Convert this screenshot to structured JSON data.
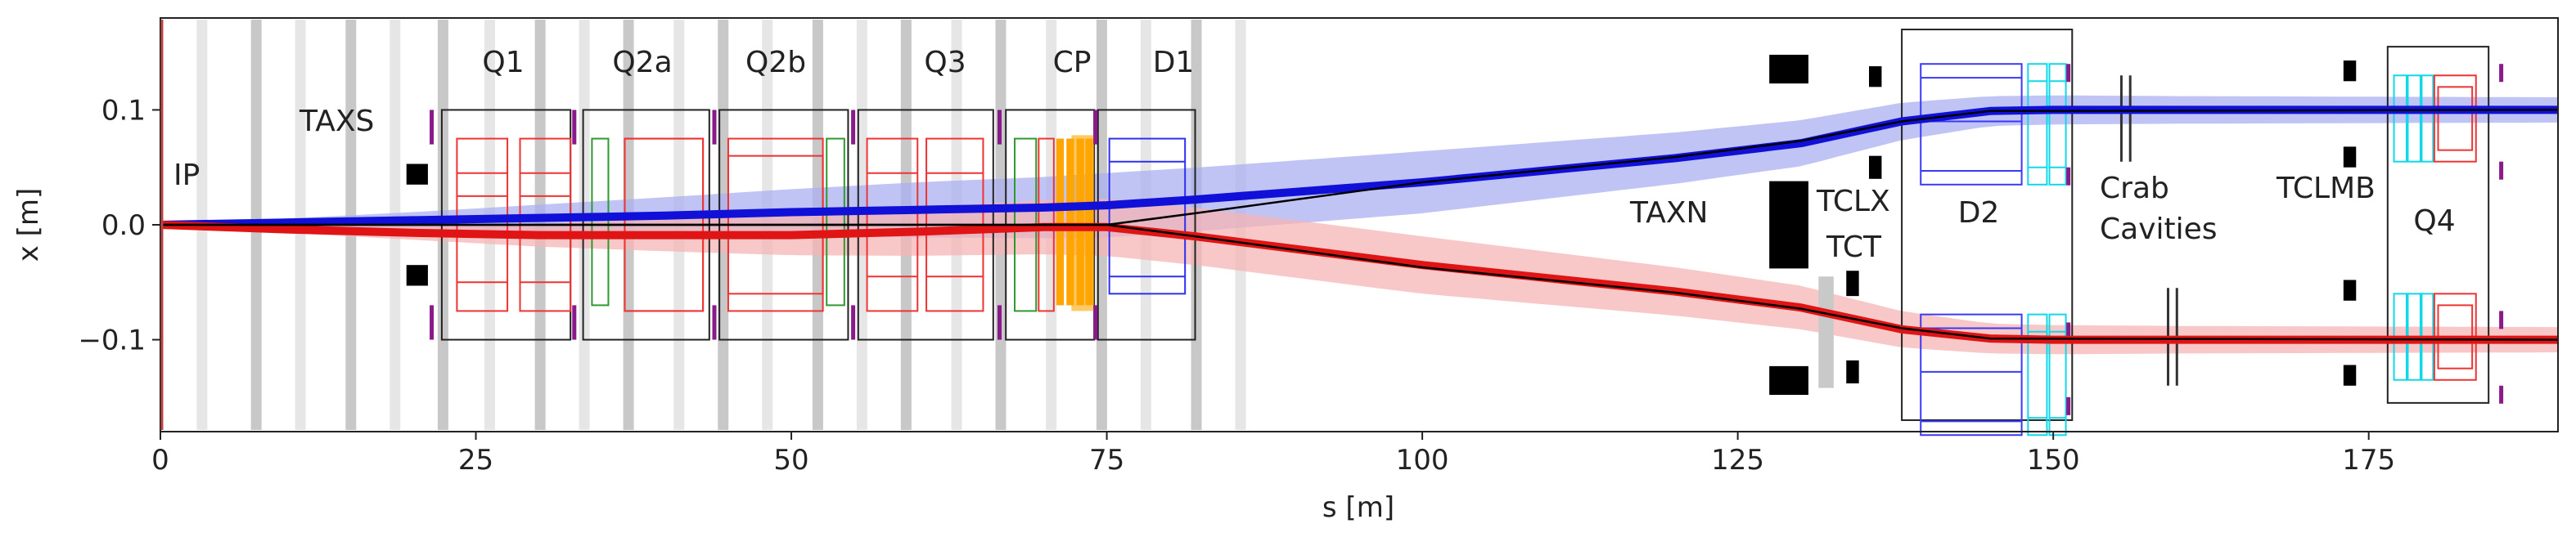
{
  "title": "",
  "axes": {
    "xlabel": "s [m]",
    "ylabel": "x [m]",
    "xlim": [
      0,
      190
    ],
    "ylim": [
      -0.18,
      0.18
    ],
    "xticks": [
      0,
      25,
      50,
      75,
      100,
      125,
      150,
      175
    ],
    "yticks": [
      0.1,
      0.0,
      -0.1
    ],
    "xtick_labels": [
      "0",
      "25",
      "50",
      "75",
      "100",
      "125",
      "150",
      "175"
    ],
    "ytick_labels": [
      "0.1",
      "0.0",
      "−0.1"
    ]
  },
  "labels": {
    "ip": "IP",
    "taxs": "TAXS",
    "q1": "Q1",
    "q2a": "Q2a",
    "q2b": "Q2b",
    "q3": "Q3",
    "cp": "CP",
    "d1": "D1",
    "taxn": "TAXN",
    "tclx": "TCLX",
    "tct": "TCT",
    "d2": "D2",
    "crab_line1": "Crab",
    "crab_line2": "Cavities",
    "tclmb": "TCLMB",
    "q4": "Q4"
  },
  "colors": {
    "beam1": "#1010d8",
    "beam1_envelope": "#aab0f2",
    "beam2": "#e01414",
    "beam2_envelope": "#f6b4b4",
    "reference": "#000000",
    "q_magnet": "#ee3333",
    "corrector": "#2e9a2e",
    "cp_mask": "#ffa500",
    "d1_coil": "#2f2ff0",
    "d2_coil": "#3a3af5",
    "cyan_coil": "#11d8e8",
    "collimator": "#000000",
    "bpm": "#8a1a8a",
    "stripe_dark": "#c8c8c8",
    "stripe_light": "#e6e6e6"
  },
  "chart_data": {
    "type": "line",
    "x_unit": "m",
    "y_unit": "m",
    "series": [
      {
        "name": "Beam 1 (blue) orbit",
        "s": [
          0,
          10,
          20,
          30,
          40,
          50,
          60,
          70,
          75,
          82,
          100,
          120,
          130,
          138,
          145,
          150,
          160,
          170,
          180,
          190
        ],
        "x": [
          0.0,
          0.002,
          0.004,
          0.006,
          0.008,
          0.011,
          0.013,
          0.015,
          0.017,
          0.022,
          0.037,
          0.058,
          0.071,
          0.09,
          0.099,
          0.1,
          0.1,
          0.1,
          0.1,
          0.1
        ]
      },
      {
        "name": "Beam 2 (red) orbit",
        "s": [
          0,
          10,
          20,
          30,
          40,
          50,
          60,
          70,
          75,
          82,
          100,
          120,
          130,
          138,
          145,
          150,
          160,
          170,
          180,
          190
        ],
        "x": [
          0.0,
          -0.004,
          -0.007,
          -0.009,
          -0.009,
          -0.009,
          -0.006,
          -0.002,
          -0.002,
          -0.01,
          -0.035,
          -0.058,
          -0.072,
          -0.091,
          -0.099,
          -0.1,
          -0.1,
          -0.1,
          -0.1,
          -0.1
        ]
      },
      {
        "name": "Beam 1 envelope half-width",
        "s": [
          0,
          20,
          40,
          60,
          75,
          100,
          130,
          145,
          160,
          190
        ],
        "x": [
          0.0,
          0.007,
          0.016,
          0.024,
          0.028,
          0.027,
          0.02,
          0.013,
          0.012,
          0.011
        ]
      },
      {
        "name": "Beam 2 envelope half-width",
        "s": [
          0,
          20,
          40,
          60,
          75,
          100,
          130,
          145,
          160,
          190
        ],
        "x": [
          0.0,
          0.006,
          0.014,
          0.021,
          0.025,
          0.025,
          0.019,
          0.013,
          0.012,
          0.011
        ]
      },
      {
        "name": "Reference trajectory (black)",
        "s": [
          0,
          75,
          82,
          100,
          120,
          130,
          138,
          145,
          190
        ],
        "x": [
          0.0,
          0.0,
          0.01,
          0.037,
          0.059,
          0.073,
          0.09,
          0.099,
          0.1
        ]
      }
    ],
    "elements": [
      {
        "name": "TAXS",
        "s_start": 19.5,
        "s_end": 21.2,
        "type": "absorber"
      },
      {
        "name": "Q1",
        "s_start": 22.3,
        "s_end": 32.5,
        "type": "quadrupole"
      },
      {
        "name": "Q2a",
        "s_start": 33.5,
        "s_end": 43.5,
        "type": "quadrupole"
      },
      {
        "name": "Q2b",
        "s_start": 44.3,
        "s_end": 54.5,
        "type": "quadrupole"
      },
      {
        "name": "Q3",
        "s_start": 55.3,
        "s_end": 66,
        "type": "quadrupole"
      },
      {
        "name": "CP",
        "s_start": 67,
        "s_end": 74,
        "type": "corrector package"
      },
      {
        "name": "D1",
        "s_start": 74.3,
        "s_end": 82,
        "type": "dipole"
      },
      {
        "name": "TAXN",
        "s_start": 127.5,
        "s_end": 130.5,
        "type": "absorber"
      },
      {
        "name": "TCLX",
        "s_start": 134,
        "s_end": 135,
        "type": "collimator"
      },
      {
        "name": "TCT",
        "s_start": 131.5,
        "s_end": 132.5,
        "type": "collimator"
      },
      {
        "name": "D2",
        "s_start": 138,
        "s_end": 151.5,
        "type": "dipole"
      },
      {
        "name": "Crab Cavities",
        "s_start": 155,
        "s_end": 160,
        "type": "rf"
      },
      {
        "name": "TCLMB",
        "s_start": 173,
        "s_end": 174,
        "type": "collimator"
      },
      {
        "name": "Q4",
        "s_start": 176.5,
        "s_end": 184.5,
        "type": "quadrupole"
      }
    ]
  }
}
